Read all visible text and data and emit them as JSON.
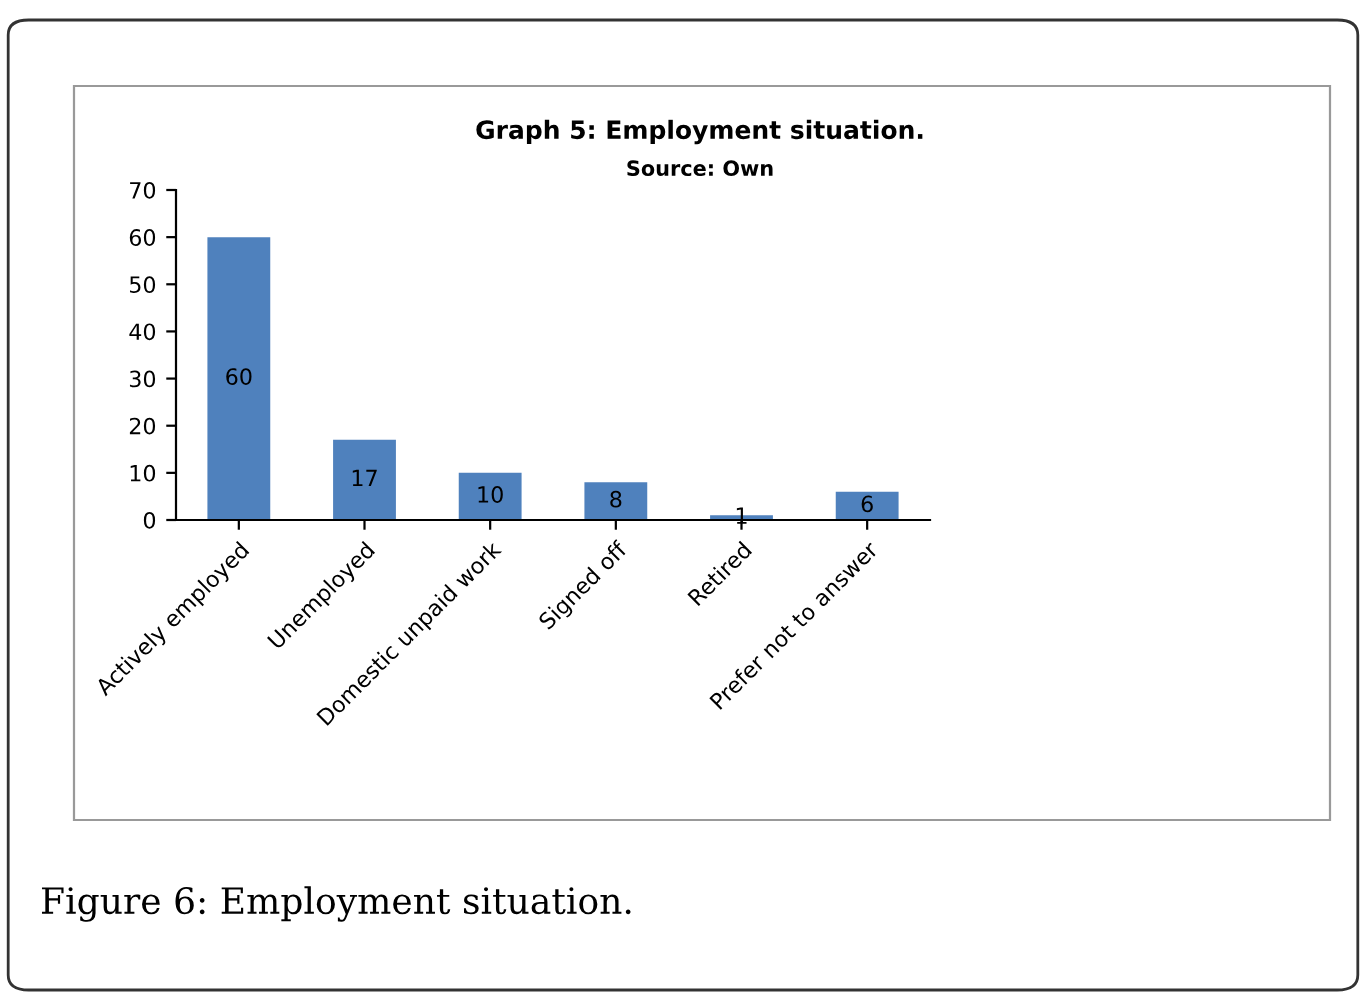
{
  "chart_data": {
    "type": "bar",
    "title": "Graph 5: Employment situation.",
    "subtitle": "Source: Own",
    "categories": [
      "Actively employed",
      "Unemployed",
      "Domestic unpaid work",
      "Signed off",
      "Retired",
      "Prefer not to answer"
    ],
    "values": [
      60,
      17,
      10,
      8,
      1,
      6
    ],
    "color": "#4f81bd",
    "data_labels": true,
    "ylim": [
      0,
      70
    ],
    "yticks": [
      0,
      10,
      20,
      30,
      40,
      50,
      60,
      70
    ],
    "grid": false,
    "legend": false,
    "annotations": [
      "Figure 6: Employment situation."
    ]
  }
}
